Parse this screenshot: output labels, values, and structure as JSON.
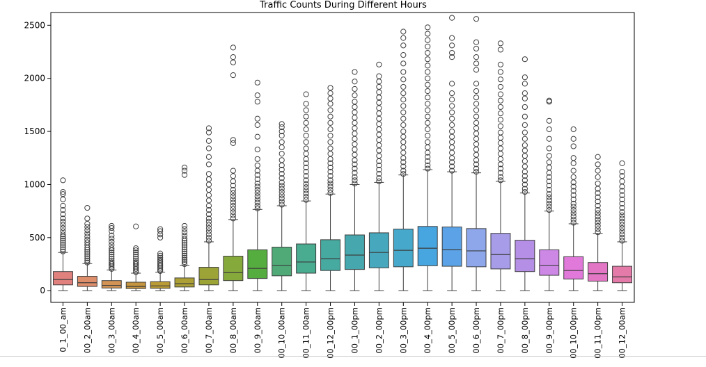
{
  "chart_data": {
    "type": "box",
    "title": "Traffic Counts During Different Hours",
    "xlabel": "",
    "ylabel": "",
    "ylim": [
      -110,
      2620
    ],
    "yticks": [
      0,
      500,
      1000,
      1500,
      2000,
      2500
    ],
    "ytick_labels": [
      "0",
      "500",
      "1000",
      "1500",
      "2000",
      "2500"
    ],
    "grid": false,
    "legend": "none",
    "categories": [
      "0_1_00_am",
      "00_2_00am",
      "00_3_00am",
      "00_4_00am",
      "00_5_00am",
      "00_6_00am",
      "00_7_00am",
      "00_8_00am",
      "00_9_00am",
      "00_10_00am",
      "00_11_00am",
      "00_12_00pm",
      "00_1_00pm",
      "00_2_00pm",
      "00_3_00pm",
      "00_4_00pm",
      "00_5_00pm",
      "00_6_00pm",
      "00_7_00pm",
      "00_8_00pm",
      "00_9_00pm",
      "00_10_00pm",
      "00_11_00pm",
      "00_12_00am"
    ],
    "colors": [
      "#e1817e",
      "#de8e6a",
      "#d39355",
      "#c5953f",
      "#bb9b35",
      "#ab9f35",
      "#9ca438",
      "#86a93c",
      "#56ad3f",
      "#4faa78",
      "#49ab90",
      "#47aaa0",
      "#46a8ae",
      "#47a7bc",
      "#46a8ca",
      "#47a6e0",
      "#5ba3e6",
      "#8da7ea",
      "#a69ce8",
      "#b58fe5",
      "#cd88e6",
      "#e079d9",
      "#e476c6",
      "#e37aa8"
    ],
    "boxes": [
      {
        "min": 0,
        "q1": 55,
        "median": 105,
        "q3": 180,
        "max": 360
      },
      {
        "min": 0,
        "q1": 40,
        "median": 75,
        "q3": 135,
        "max": 255
      },
      {
        "min": 0,
        "q1": 25,
        "median": 50,
        "q3": 95,
        "max": 195
      },
      {
        "min": 0,
        "q1": 20,
        "median": 40,
        "q3": 80,
        "max": 165
      },
      {
        "min": 0,
        "q1": 22,
        "median": 45,
        "q3": 85,
        "max": 175
      },
      {
        "min": 0,
        "q1": 35,
        "median": 65,
        "q3": 120,
        "max": 240
      },
      {
        "min": 0,
        "q1": 55,
        "median": 105,
        "q3": 220,
        "max": 460
      },
      {
        "min": 0,
        "q1": 95,
        "median": 170,
        "q3": 325,
        "max": 670
      },
      {
        "min": 0,
        "q1": 115,
        "median": 210,
        "q3": 385,
        "max": 765
      },
      {
        "min": 0,
        "q1": 140,
        "median": 240,
        "q3": 410,
        "max": 800
      },
      {
        "min": 0,
        "q1": 165,
        "median": 270,
        "q3": 440,
        "max": 845
      },
      {
        "min": 0,
        "q1": 190,
        "median": 300,
        "q3": 480,
        "max": 910
      },
      {
        "min": 0,
        "q1": 200,
        "median": 335,
        "q3": 525,
        "max": 1000
      },
      {
        "min": 0,
        "q1": 215,
        "median": 360,
        "q3": 545,
        "max": 1020
      },
      {
        "min": 0,
        "q1": 225,
        "median": 380,
        "q3": 580,
        "max": 1090
      },
      {
        "min": 0,
        "q1": 235,
        "median": 400,
        "q3": 605,
        "max": 1140
      },
      {
        "min": 0,
        "q1": 230,
        "median": 385,
        "q3": 600,
        "max": 1120
      },
      {
        "min": 0,
        "q1": 225,
        "median": 375,
        "q3": 585,
        "max": 1110
      },
      {
        "min": 0,
        "q1": 205,
        "median": 340,
        "q3": 540,
        "max": 1030
      },
      {
        "min": 0,
        "q1": 180,
        "median": 300,
        "q3": 475,
        "max": 920
      },
      {
        "min": 0,
        "q1": 145,
        "median": 240,
        "q3": 385,
        "max": 750
      },
      {
        "min": 0,
        "q1": 110,
        "median": 190,
        "q3": 320,
        "max": 630
      },
      {
        "min": 0,
        "q1": 90,
        "median": 160,
        "q3": 265,
        "max": 540
      },
      {
        "min": 0,
        "q1": 75,
        "median": 130,
        "q3": 230,
        "max": 460
      }
    ],
    "outliers": [
      [
        370,
        390,
        410,
        430,
        450,
        470,
        490,
        510,
        530,
        560,
        590,
        620,
        650,
        680,
        720,
        760,
        800,
        860,
        910,
        930,
        1040
      ],
      [
        265,
        285,
        305,
        325,
        345,
        365,
        385,
        405,
        430,
        455,
        480,
        510,
        540,
        570,
        600,
        630,
        680,
        780
      ],
      [
        205,
        220,
        235,
        250,
        265,
        280,
        300,
        320,
        340,
        360,
        380,
        400,
        430,
        460,
        490,
        520,
        560,
        590,
        610
      ],
      [
        175,
        190,
        205,
        220,
        235,
        250,
        265,
        280,
        300,
        320,
        340,
        360,
        380,
        400,
        605
      ],
      [
        185,
        200,
        215,
        230,
        245,
        260,
        275,
        290,
        310,
        330,
        350,
        500,
        530,
        560,
        580
      ],
      [
        250,
        270,
        290,
        310,
        330,
        350,
        370,
        390,
        410,
        430,
        450,
        470,
        490,
        520,
        550,
        580,
        610,
        1090,
        1130,
        1160
      ],
      [
        470,
        500,
        530,
        560,
        590,
        620,
        650,
        680,
        720,
        760,
        800,
        850,
        900,
        950,
        1000,
        1050,
        1100,
        1190,
        1260,
        1340,
        1410,
        1490,
        1530
      ],
      [
        680,
        710,
        740,
        770,
        800,
        830,
        860,
        890,
        920,
        950,
        990,
        1030,
        1080,
        1130,
        1390,
        1420,
        2030,
        2150,
        2200,
        2290
      ],
      [
        775,
        800,
        830,
        860,
        890,
        920,
        950,
        980,
        1010,
        1050,
        1090,
        1130,
        1180,
        1240,
        1330,
        1450,
        1560,
        1620,
        1780,
        1840,
        1960
      ],
      [
        810,
        840,
        870,
        900,
        930,
        960,
        990,
        1020,
        1060,
        1100,
        1140,
        1180,
        1230,
        1290,
        1350,
        1400,
        1460,
        1500,
        1540,
        1570
      ],
      [
        855,
        885,
        915,
        945,
        975,
        1005,
        1040,
        1080,
        1120,
        1160,
        1200,
        1240,
        1290,
        1340,
        1400,
        1460,
        1520,
        1580,
        1640,
        1700,
        1760,
        1850
      ],
      [
        920,
        950,
        980,
        1010,
        1040,
        1080,
        1120,
        1160,
        1200,
        1240,
        1290,
        1340,
        1400,
        1460,
        1520,
        1580,
        1640,
        1700,
        1760,
        1810,
        1860,
        1910
      ],
      [
        1010,
        1040,
        1070,
        1110,
        1150,
        1190,
        1230,
        1280,
        1330,
        1380,
        1430,
        1480,
        1530,
        1580,
        1630,
        1680,
        1730,
        1780,
        1840,
        1900,
        1970,
        2060
      ],
      [
        1030,
        1060,
        1100,
        1140,
        1180,
        1220,
        1270,
        1320,
        1370,
        1420,
        1470,
        1520,
        1570,
        1620,
        1670,
        1720,
        1770,
        1820,
        1870,
        1920,
        1970,
        2020,
        2130
      ],
      [
        1100,
        1130,
        1170,
        1210,
        1250,
        1300,
        1350,
        1400,
        1450,
        1500,
        1560,
        1620,
        1680,
        1740,
        1800,
        1860,
        1920,
        1990,
        2060,
        2140,
        2220,
        2310,
        2380,
        2440
      ],
      [
        1150,
        1180,
        1220,
        1260,
        1300,
        1350,
        1400,
        1460,
        1520,
        1580,
        1640,
        1700,
        1760,
        1820,
        1880,
        1940,
        2000,
        2060,
        2120,
        2180,
        2240,
        2300,
        2360,
        2420,
        2480
      ],
      [
        1130,
        1170,
        1210,
        1250,
        1300,
        1350,
        1400,
        1450,
        1500,
        1560,
        1620,
        1680,
        1740,
        1800,
        1860,
        1950,
        2200,
        2240,
        2310,
        2380,
        2570
      ],
      [
        1120,
        1150,
        1190,
        1230,
        1280,
        1330,
        1380,
        1430,
        1480,
        1530,
        1580,
        1640,
        1700,
        1760,
        1820,
        1880,
        1950,
        2080,
        2140,
        2200,
        2280,
        2340,
        2560
      ],
      [
        1040,
        1070,
        1110,
        1150,
        1190,
        1240,
        1290,
        1340,
        1390,
        1440,
        1490,
        1550,
        1610,
        1670,
        1730,
        1790,
        1850,
        1920,
        1990,
        2060,
        2130,
        2270,
        2330
      ],
      [
        930,
        960,
        1000,
        1040,
        1080,
        1120,
        1170,
        1220,
        1270,
        1320,
        1370,
        1430,
        1490,
        1560,
        1640,
        1730,
        1810,
        1860,
        1950,
        2010,
        2180
      ],
      [
        760,
        790,
        820,
        850,
        880,
        910,
        950,
        990,
        1030,
        1070,
        1110,
        1160,
        1210,
        1270,
        1340,
        1430,
        1520,
        1600,
        1780,
        1790
      ],
      [
        640,
        670,
        700,
        730,
        760,
        790,
        820,
        860,
        900,
        940,
        980,
        1020,
        1070,
        1130,
        1200,
        1250,
        1360,
        1430,
        1520
      ],
      [
        550,
        580,
        610,
        640,
        670,
        700,
        730,
        760,
        800,
        840,
        880,
        920,
        960,
        1010,
        1070,
        1130,
        1190,
        1260
      ],
      [
        470,
        500,
        530,
        560,
        590,
        620,
        650,
        680,
        710,
        740,
        780,
        820,
        860,
        900,
        940,
        980,
        1030,
        1080,
        1120,
        1200
      ]
    ]
  }
}
